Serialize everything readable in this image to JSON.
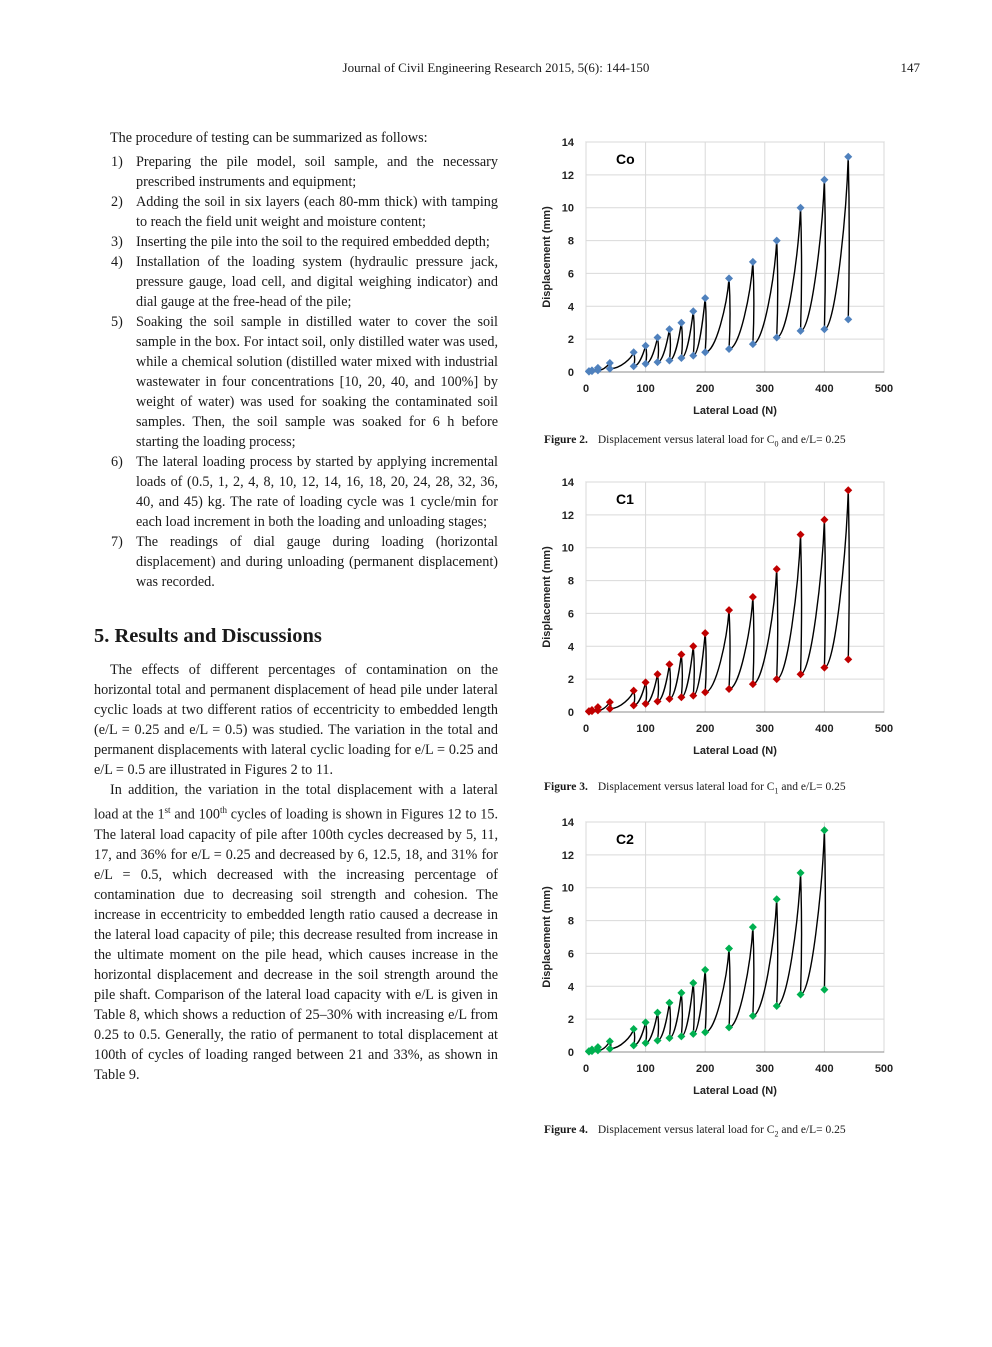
{
  "header": {
    "journal": "Journal of Civil Engineering Research 2015, 5(6): 144-150",
    "page_number": "147"
  },
  "left": {
    "intro": "The procedure of testing can be summarized as follows:",
    "steps": [
      {
        "num": "1)",
        "text": "Preparing the pile model, soil sample, and the necessary prescribed instruments and equipment;"
      },
      {
        "num": "2)",
        "text": "Adding the soil in six layers (each 80-mm thick) with tamping to reach the field unit weight and moisture content;"
      },
      {
        "num": "3)",
        "text": "Inserting the pile into the soil to the required embedded depth;"
      },
      {
        "num": "4)",
        "text": "Installation of the loading system (hydraulic pressure jack, pressure gauge, load cell, and digital weighing indicator) and dial gauge at the free-head of the pile;"
      },
      {
        "num": "5)",
        "text": "Soaking the soil sample in distilled water to cover the soil sample in the box. For intact soil, only distilled water was used, while a chemical solution (distilled water mixed with industrial wastewater in four concentrations [10, 20, 40, and 100%] by weight of water) was used for soaking the contaminated soil samples. Then, the soil sample was soaked for 6 h before starting the loading process;"
      },
      {
        "num": "6)",
        "text": "The lateral loading process by started by applying incremental loads of (0.5, 1, 2, 4, 8, 10, 12, 14, 16, 18, 20, 24, 28, 32, 36, 40, and 45) kg. The rate of loading cycle was 1 cycle/min for each load increment in both the loading and unloading stages;"
      },
      {
        "num": "7)",
        "text": "The readings of dial gauge during loading (horizontal displacement) and during unloading (permanent displacement) was recorded."
      }
    ],
    "section_title": "5. Results and Discussions",
    "para1": "The effects of different percentages of contamination on the horizontal total and permanent displacement of head pile under lateral cyclic loads at two different ratios of eccentricity to embedded length (e/L = 0.25 and e/L = 0.5) was studied. The variation in the total and permanent displacements with lateral cyclic loading for e/L = 0.25 and e/L = 0.5 are illustrated in Figures 2 to 11.",
    "para2_a": "In addition, the variation in the total displacement with a lateral load at the 1",
    "para2_sup1": "st",
    "para2_b": " and 100",
    "para2_sup2": "th",
    "para2_c": " cycles of loading is shown in Figures 12 to 15. The lateral load capacity of pile after 100th cycles decreased by 5, 11, 17, and 36% for e/L = 0.25 and decreased by 6, 12.5, 18, and 31% for e/L = 0.5, which decreased with the increasing percentage of contamination due to decreasing soil strength and cohesion. The increase in eccentricity to embedded length ratio caused a decrease in the lateral load capacity of pile; this decrease resulted from increase in the ultimate moment on the pile head, which causes increase in the horizontal displacement and decrease in the soil strength around the pile shaft. Comparison of the lateral load capacity with e/L is given in Table 8, which shows a reduction of 25–30% with increasing e/L from 0.25 to 0.5. Generally, the ratio of permanent to total displacement at 100th of cycles of loading ranged between 21 and 33%, as shown in Table 9."
  },
  "chart_data": [
    {
      "type": "scatter",
      "title": "Co",
      "xlabel": "Lateral Load (N)",
      "ylabel": "Displacement (mm)",
      "xlim": [
        0,
        500
      ],
      "ylim": [
        0,
        14
      ],
      "xticks": [
        0,
        100,
        200,
        300,
        400,
        500
      ],
      "yticks": [
        0,
        2,
        4,
        6,
        8,
        10,
        12,
        14
      ],
      "grid": true,
      "marker": "diamond",
      "marker_color": "#4f81bd",
      "line_color": "#000000",
      "loads": [
        5,
        10,
        20,
        40,
        80,
        100,
        120,
        140,
        160,
        180,
        200,
        240,
        280,
        320,
        360,
        400,
        440
      ],
      "total": [
        0.05,
        0.1,
        0.25,
        0.55,
        1.2,
        1.6,
        2.1,
        2.6,
        3.0,
        3.7,
        4.5,
        5.7,
        6.7,
        8.0,
        10.0,
        11.7,
        13.1
      ],
      "permanent": [
        0.02,
        0.05,
        0.1,
        0.2,
        0.35,
        0.5,
        0.6,
        0.7,
        0.85,
        1.0,
        1.2,
        1.4,
        1.7,
        2.1,
        2.5,
        2.6,
        3.2
      ],
      "caption_label": "Figure 2.",
      "caption_pre": "Displacement versus lateral load for C",
      "caption_sub": "0",
      "caption_post": " and e/L= 0.25"
    },
    {
      "type": "scatter",
      "title": "C1",
      "xlabel": "Lateral Load (N)",
      "ylabel": "Displacement (mm)",
      "xlim": [
        0,
        500
      ],
      "ylim": [
        0,
        14
      ],
      "xticks": [
        0,
        100,
        200,
        300,
        400,
        500
      ],
      "yticks": [
        0,
        2,
        4,
        6,
        8,
        10,
        12,
        14
      ],
      "grid": true,
      "marker": "diamond",
      "marker_color": "#c00000",
      "line_color": "#000000",
      "loads": [
        5,
        10,
        20,
        40,
        80,
        100,
        120,
        140,
        160,
        180,
        200,
        240,
        280,
        320,
        360,
        400,
        440
      ],
      "total": [
        0.05,
        0.12,
        0.3,
        0.6,
        1.3,
        1.8,
        2.3,
        2.9,
        3.5,
        4.0,
        4.8,
        6.2,
        7.0,
        8.7,
        10.8,
        11.7,
        13.5
      ],
      "permanent": [
        0.02,
        0.05,
        0.1,
        0.2,
        0.4,
        0.5,
        0.65,
        0.8,
        0.9,
        1.0,
        1.2,
        1.4,
        1.7,
        2.0,
        2.3,
        2.7,
        3.2
      ],
      "caption_label": "Figure 3.",
      "caption_pre": "Displacement versus lateral load for C",
      "caption_sub": "1",
      "caption_post": " and e/L= 0.25"
    },
    {
      "type": "scatter",
      "title": "C2",
      "xlabel": "Lateral Load (N)",
      "ylabel": "Displacement (mm)",
      "xlim": [
        0,
        500
      ],
      "ylim": [
        0,
        14
      ],
      "xticks": [
        0,
        100,
        200,
        300,
        400,
        500
      ],
      "yticks": [
        0,
        2,
        4,
        6,
        8,
        10,
        12,
        14
      ],
      "grid": true,
      "marker": "diamond",
      "marker_color": "#00b050",
      "line_color": "#000000",
      "loads": [
        5,
        10,
        20,
        40,
        80,
        100,
        120,
        140,
        160,
        180,
        200,
        240,
        280,
        320,
        360,
        400
      ],
      "total": [
        0.05,
        0.15,
        0.3,
        0.65,
        1.4,
        1.8,
        2.4,
        3.0,
        3.6,
        4.2,
        5.0,
        6.3,
        7.6,
        9.3,
        10.9,
        13.5
      ],
      "permanent": [
        0.02,
        0.05,
        0.1,
        0.2,
        0.4,
        0.55,
        0.7,
        0.85,
        0.95,
        1.1,
        1.2,
        1.5,
        2.2,
        2.8,
        3.5,
        3.8
      ],
      "caption_label": "Figure 4.",
      "caption_pre": "Displacement versus lateral load for C",
      "caption_sub": "2",
      "caption_post": " and e/L= 0.25"
    }
  ]
}
